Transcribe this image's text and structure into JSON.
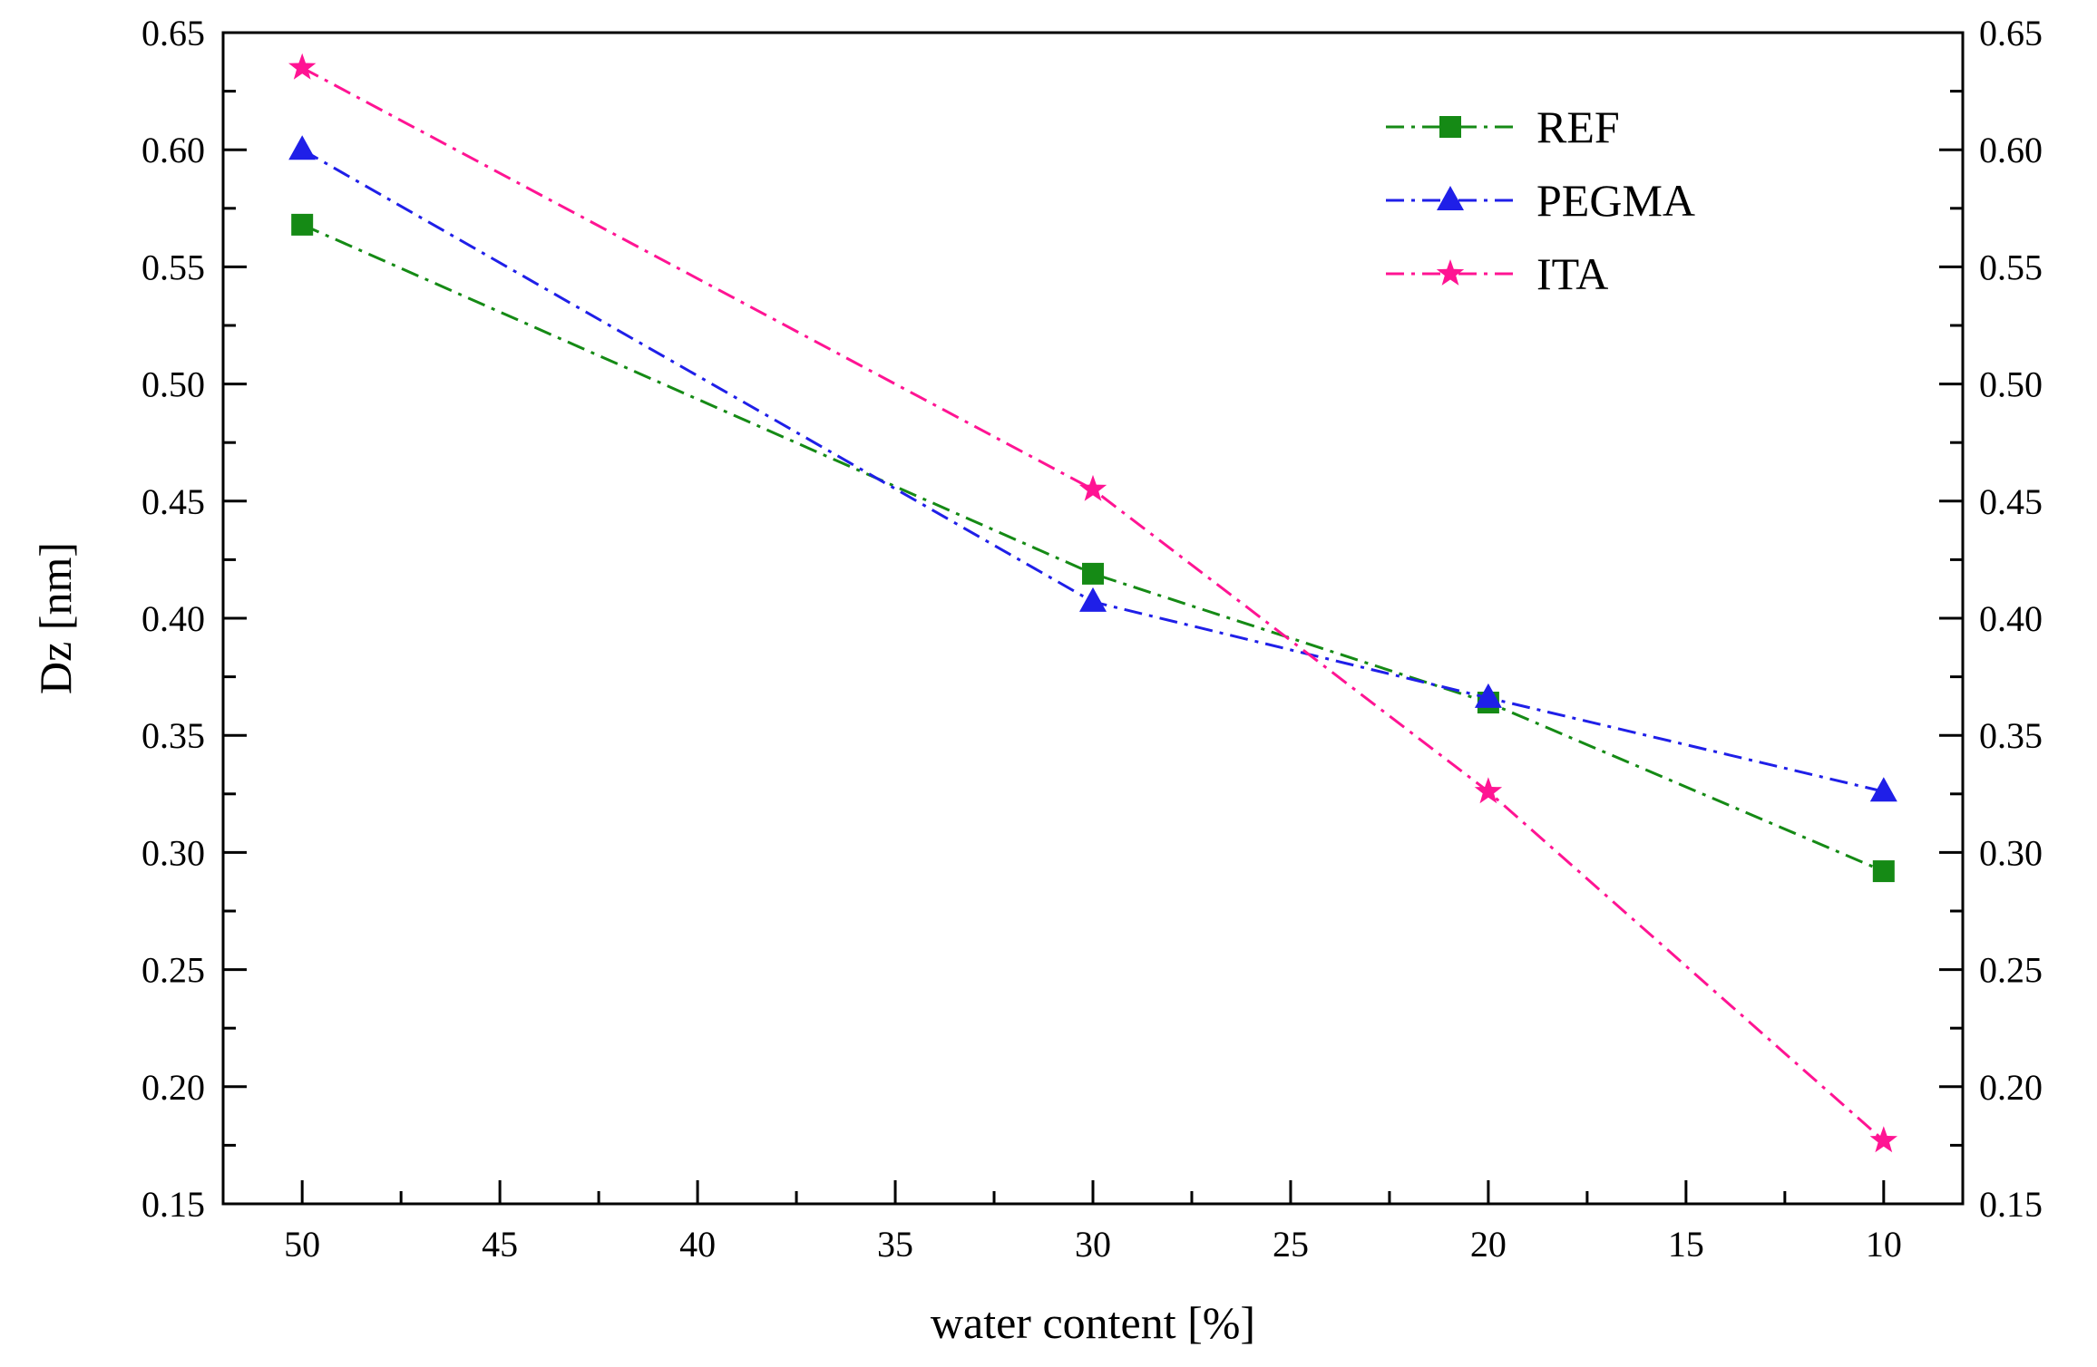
{
  "chart_data": {
    "type": "line",
    "title": "",
    "xlabel": "water content [%]",
    "ylabel": "Dz [nm]",
    "x_ticks": [
      "50",
      "45",
      "40",
      "35",
      "30",
      "25",
      "20",
      "15",
      "10"
    ],
    "y_ticks": [
      "0.15",
      "0.20",
      "0.25",
      "0.30",
      "0.35",
      "0.40",
      "0.45",
      "0.50",
      "0.55",
      "0.60",
      "0.65"
    ],
    "xlim": [
      52,
      8
    ],
    "ylim": [
      0.15,
      0.65
    ],
    "x_reversed": true,
    "mirror_right_axis": true,
    "grid": false,
    "legend_position": "top-right",
    "x": [
      50,
      30,
      20,
      10
    ],
    "series": [
      {
        "name": "REF",
        "marker": "square",
        "color": "#158a15",
        "values": [
          0.568,
          0.419,
          0.364,
          0.292
        ]
      },
      {
        "name": "PEGMA",
        "marker": "triangle",
        "color": "#1f1fe8",
        "values": [
          0.6,
          0.407,
          0.366,
          0.326
        ]
      },
      {
        "name": "ITA",
        "marker": "star",
        "color": "#ff1493",
        "values": [
          0.635,
          0.455,
          0.326,
          0.177
        ]
      }
    ]
  }
}
